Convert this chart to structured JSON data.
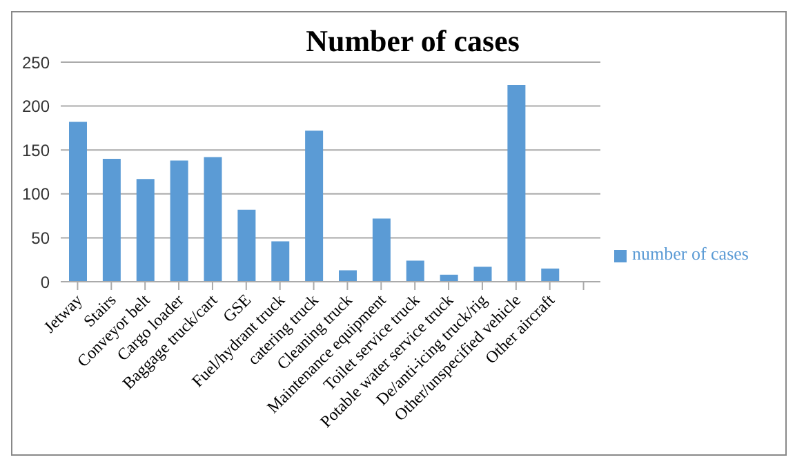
{
  "chart_data": {
    "type": "bar",
    "title": "Number of cases",
    "categories": [
      "Jetway",
      "Stairs",
      "Conveyor belt",
      "Cargo loader",
      "Baggage truck/cart",
      "GSE",
      "Fuel/hydrant truck",
      "catering truck",
      "Cleaning truck",
      "Maintenance equipment",
      "Toilet service truck",
      "Potable water service truck",
      "De/anti-icing truck/rig",
      "Other/unspecified vehicle",
      "Other aircraft",
      null
    ],
    "series": [
      {
        "name": "number of cases",
        "color": "#5b9bd5",
        "values": [
          182,
          140,
          117,
          138,
          142,
          82,
          46,
          172,
          13,
          72,
          24,
          8,
          17,
          224,
          15,
          null
        ]
      }
    ],
    "ylim": [
      0,
      250
    ],
    "yticks": [
      0,
      50,
      100,
      150,
      200,
      250
    ],
    "grid": "y",
    "legend": "right"
  }
}
